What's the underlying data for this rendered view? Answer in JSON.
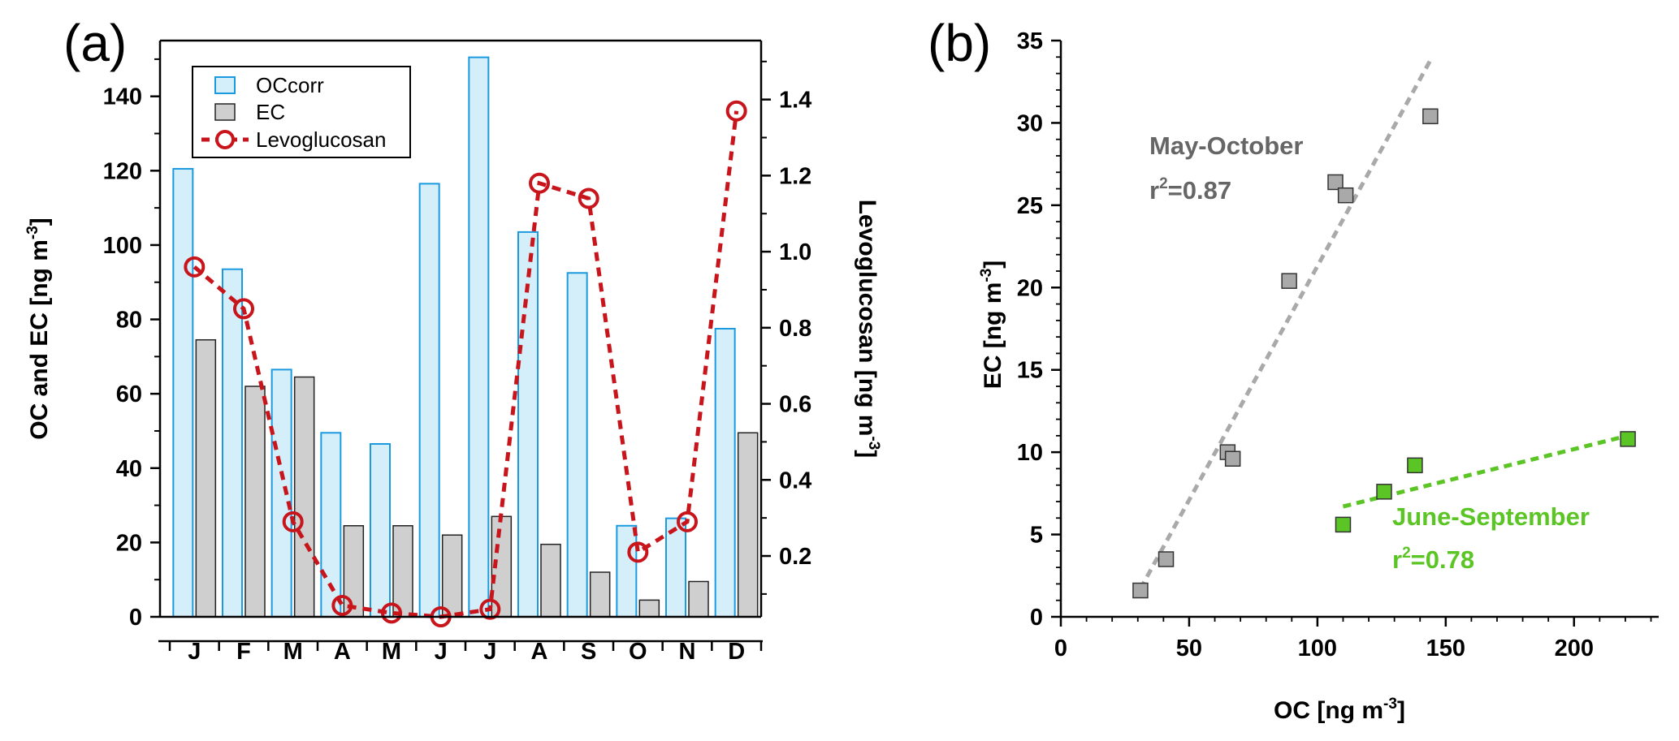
{
  "panels": {
    "a_label": "(a)",
    "b_label": "(b)"
  },
  "chart_data": [
    {
      "type": "bar",
      "panel": "(a)",
      "categories": [
        "J",
        "F",
        "M",
        "A",
        "M",
        "J",
        "J",
        "A",
        "S",
        "O",
        "N",
        "D"
      ],
      "series": [
        {
          "name": "OCcorr",
          "axis": "left",
          "kind": "bar",
          "color": "#D4EEFA",
          "edge": "#1B9AE0",
          "values": [
            120.5,
            93.5,
            66.5,
            49.5,
            46.5,
            116.5,
            150.5,
            103.5,
            92.5,
            24.5,
            26.5,
            77.5
          ]
        },
        {
          "name": "EC",
          "axis": "left",
          "kind": "bar",
          "color": "#D0CFCF",
          "edge": "#222222",
          "values": [
            74.5,
            62.0,
            64.5,
            24.5,
            24.5,
            22.0,
            27.0,
            19.5,
            12.0,
            4.5,
            9.5,
            49.5
          ]
        },
        {
          "name": "Levoglucosan",
          "axis": "right",
          "kind": "line",
          "color": "#C8141B",
          "values": [
            0.96,
            0.85,
            0.29,
            0.07,
            0.05,
            0.04,
            0.06,
            1.18,
            1.14,
            0.21,
            0.29,
            1.37
          ]
        }
      ],
      "ylabel": "OC and EC [ng m",
      "ylabel_sup": "-3",
      "ylabel_end": "]",
      "ylim": [
        0,
        155
      ],
      "yticks": [
        0,
        20,
        40,
        60,
        80,
        100,
        120,
        140
      ],
      "y2label": "Levoglucosan [ng m",
      "y2label_sup": "-3",
      "y2label_end": "]",
      "y2lim": [
        0.04,
        1.555
      ],
      "y2ticks": [
        0.2,
        0.4,
        0.6,
        0.8,
        1.0,
        1.2,
        1.4
      ],
      "y2ticklabels": [
        "0.2",
        "0.4",
        "0.6",
        "0.8",
        "1.0",
        "1.2",
        "1.4"
      ],
      "legend": [
        "OCcorr",
        "EC",
        "Levoglucosan"
      ],
      "legend_position": "top-left",
      "grid": false
    },
    {
      "type": "scatter",
      "panel": "(b)",
      "series": [
        {
          "name": "May-October",
          "color": "#A9A9A9",
          "label_color": "#666666",
          "r2_text": "=0.87",
          "x": [
            31,
            41,
            65,
            67,
            89,
            107,
            111,
            144
          ],
          "y": [
            1.6,
            3.5,
            10.0,
            9.6,
            20.4,
            26.4,
            25.6,
            30.4
          ],
          "fit": {
            "x": [
              31,
              144
            ],
            "y": [
              1.7,
              33.8
            ]
          }
        },
        {
          "name": "June-September",
          "color": "#5AC524",
          "label_color": "#5AC524",
          "r2_text": "=0.78",
          "x": [
            110,
            126,
            138,
            221
          ],
          "y": [
            5.6,
            7.6,
            9.2,
            10.8
          ],
          "fit": {
            "x": [
              110,
              221
            ],
            "y": [
              6.7,
              11.0
            ]
          }
        }
      ],
      "xlabel": "OC [ng m",
      "xlabel_sup": "-3",
      "xlabel_end": "]",
      "ylabel": "EC [ng m",
      "ylabel_sup": "-3",
      "ylabel_end": "]",
      "xlim": [
        0,
        233
      ],
      "ylim": [
        0,
        35
      ],
      "xticks": [
        0,
        50,
        100,
        150,
        200
      ],
      "yticks": [
        0,
        5,
        10,
        15,
        20,
        25,
        30,
        35
      ],
      "r2_prefix": "r",
      "r2_sup": "2",
      "grid": false
    }
  ]
}
